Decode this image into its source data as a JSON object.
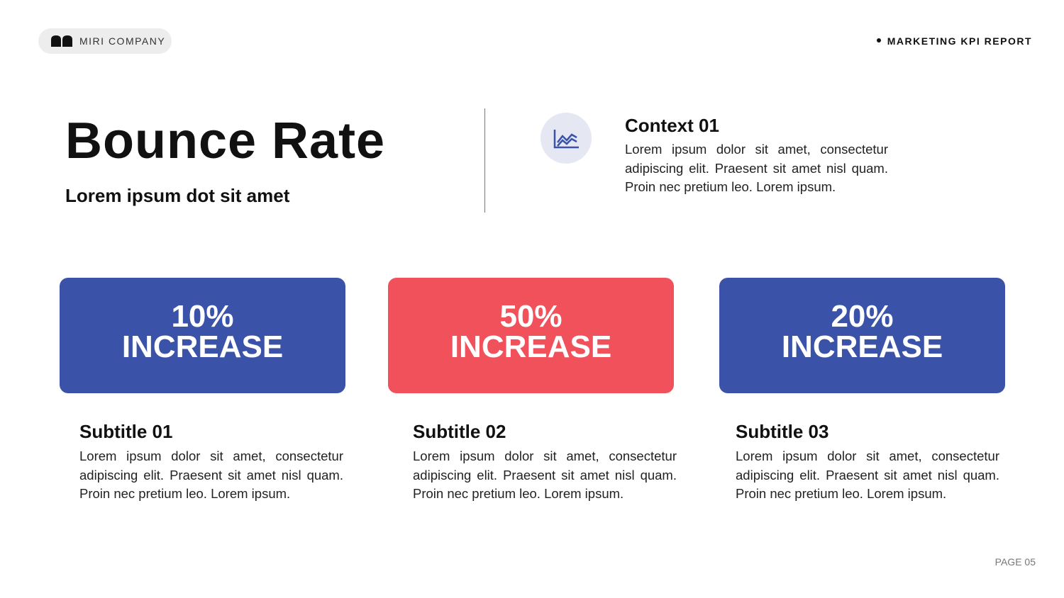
{
  "header": {
    "company": "MIRI COMPANY",
    "report": "MARKETING KPI REPORT"
  },
  "hero": {
    "title": "Bounce Rate",
    "subtitle": "Lorem ipsum dot sit amet"
  },
  "context": {
    "title": "Context 01",
    "body": "Lorem ipsum dolor sit amet, consectetur adipiscing elit. Praesent sit amet nisl quam. Proin nec pretium leo. Lorem ipsum."
  },
  "cards": [
    {
      "figure": "10%",
      "label": "INCREASE",
      "subtitle": "Subtitle 01",
      "body": "Lorem ipsum dolor sit amet, consectetur adipiscing elit. Praesent sit amet nisl quam. Proin nec pretium leo. Lorem ipsum."
    },
    {
      "figure": "50%",
      "label": "INCREASE",
      "subtitle": "Subtitle 02",
      "body": "Lorem ipsum dolor sit amet, consectetur adipiscing elit. Praesent sit amet nisl quam. Proin nec pretium leo. Lorem ipsum."
    },
    {
      "figure": "20%",
      "label": "INCREASE",
      "subtitle": "Subtitle 03",
      "body": "Lorem ipsum dolor sit amet, consectetur adipiscing elit. Praesent sit amet nisl quam. Proin nec pretium leo. Lorem ipsum."
    }
  ],
  "footer": {
    "page": "PAGE 05"
  }
}
